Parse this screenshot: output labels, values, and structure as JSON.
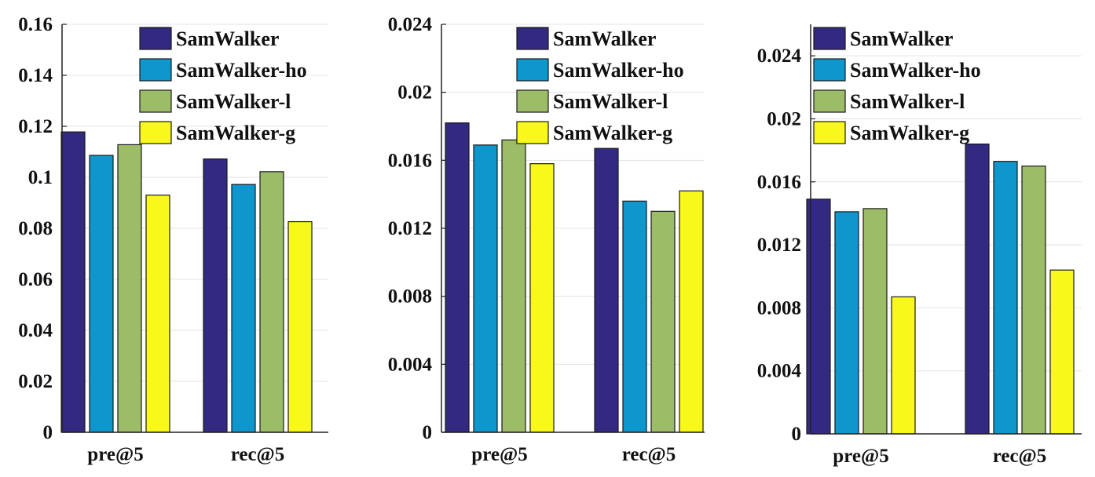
{
  "chart_data": [
    {
      "type": "bar",
      "categories": [
        "pre@5",
        "rec@5"
      ],
      "ylim": [
        0,
        0.16
      ],
      "yticks": [
        "0",
        "0.02",
        "0.04",
        "0.06",
        "0.08",
        "0.1",
        "0.12",
        "0.14",
        "0.16"
      ],
      "grid": true,
      "legend_position": "top-right",
      "series": [
        {
          "name": "SamWalker",
          "color": "#322a80",
          "values": [
            0.1178,
            0.1072
          ]
        },
        {
          "name": "SamWalker-ho",
          "color": "#0d97cd",
          "values": [
            0.1086,
            0.0972
          ]
        },
        {
          "name": "SamWalker-l",
          "color": "#9cbc67",
          "values": [
            0.1128,
            0.1022
          ]
        },
        {
          "name": "SamWalker-g",
          "color": "#f8f81a",
          "values": [
            0.093,
            0.0826
          ]
        }
      ]
    },
    {
      "type": "bar",
      "categories": [
        "pre@5",
        "rec@5"
      ],
      "ylim": [
        0,
        0.024
      ],
      "yticks": [
        "0",
        "0.004",
        "0.008",
        "0.012",
        "0.016",
        "0.02",
        "0.024"
      ],
      "grid": true,
      "legend_position": "top-right",
      "series": [
        {
          "name": "SamWalker",
          "color": "#322a80",
          "values": [
            0.0182,
            0.0167
          ]
        },
        {
          "name": "SamWalker-ho",
          "color": "#0d97cd",
          "values": [
            0.0169,
            0.0136
          ]
        },
        {
          "name": "SamWalker-l",
          "color": "#9cbc67",
          "values": [
            0.0172,
            0.013
          ]
        },
        {
          "name": "SamWalker-g",
          "color": "#f8f81a",
          "values": [
            0.0158,
            0.0142
          ]
        }
      ]
    },
    {
      "type": "bar",
      "categories": [
        "pre@5",
        "rec@5"
      ],
      "ylim": [
        0,
        0.026
      ],
      "yticks": [
        "0",
        "0.004",
        "0.008",
        "0.012",
        "0.016",
        "0.02",
        "0.024"
      ],
      "grid": true,
      "legend_position": "top-left",
      "series": [
        {
          "name": "SamWalker",
          "color": "#322a80",
          "values": [
            0.0149,
            0.0184
          ]
        },
        {
          "name": "SamWalker-ho",
          "color": "#0d97cd",
          "values": [
            0.0141,
            0.0173
          ]
        },
        {
          "name": "SamWalker-l",
          "color": "#9cbc67",
          "values": [
            0.0143,
            0.017
          ]
        },
        {
          "name": "SamWalker-g",
          "color": "#f8f81a",
          "values": [
            0.0087,
            0.0104
          ]
        }
      ]
    }
  ]
}
